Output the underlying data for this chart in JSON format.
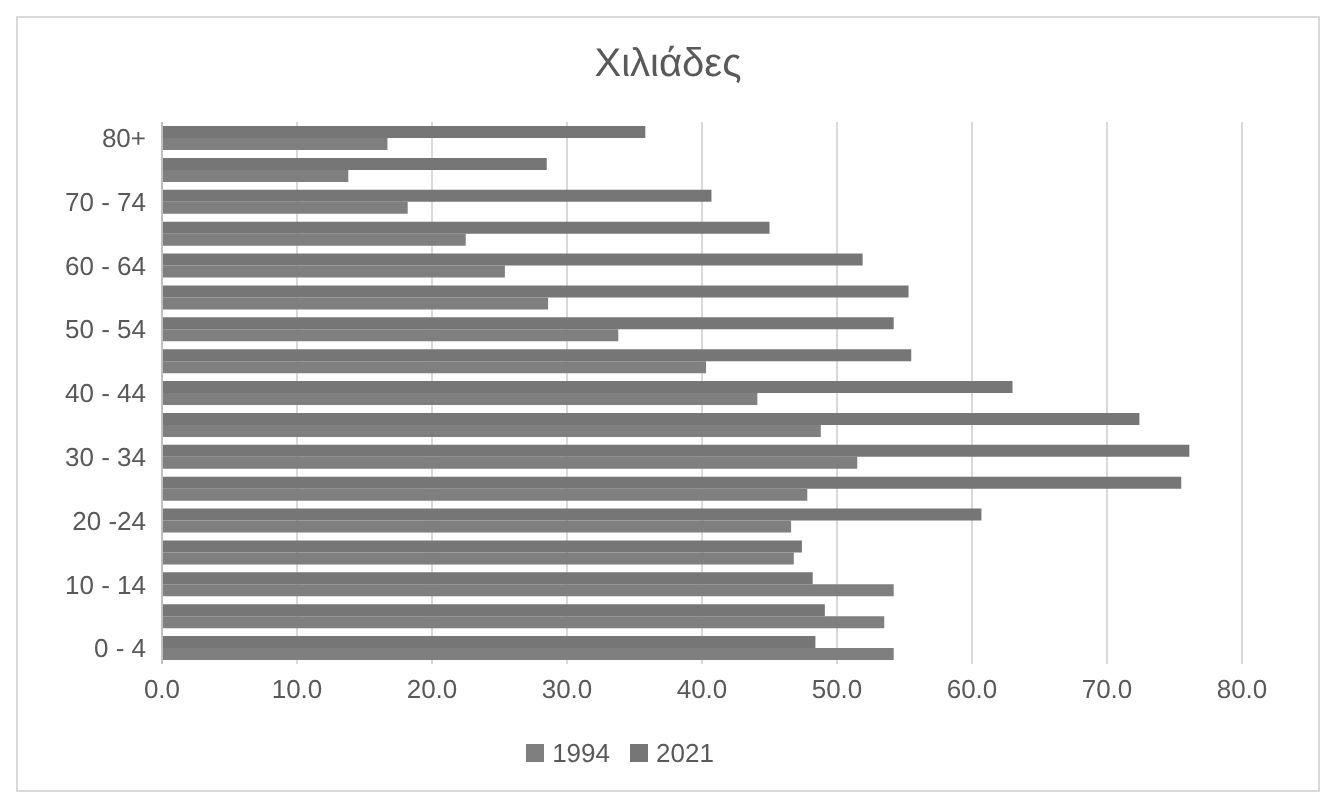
{
  "chart_data": {
    "type": "bar",
    "orientation": "horizontal",
    "title": "Χιλιάδες",
    "categories": [
      "80+",
      null,
      "70 - 74",
      null,
      "60 - 64",
      null,
      "50 - 54",
      null,
      "40 - 44",
      null,
      "30 - 34",
      null,
      "20 -24",
      null,
      "10 - 14",
      null,
      "0 - 4"
    ],
    "series": [
      {
        "name": "2021",
        "color": "#767676",
        "values": [
          35.8,
          28.5,
          40.7,
          45.0,
          51.9,
          55.3,
          54.2,
          55.5,
          63.0,
          72.4,
          76.1,
          75.5,
          60.7,
          47.4,
          48.2,
          49.1,
          48.4
        ]
      },
      {
        "name": "1994",
        "color": "#7f7f7f",
        "values": [
          16.7,
          13.8,
          18.2,
          22.5,
          25.4,
          28.6,
          33.8,
          40.3,
          44.1,
          48.8,
          51.5,
          47.8,
          46.6,
          46.8,
          54.2,
          53.5,
          54.2
        ]
      }
    ],
    "xlim": [
      0,
      80
    ],
    "xticks": [
      {
        "value": 0,
        "label": "0.0"
      },
      {
        "value": 10,
        "label": "10.0"
      },
      {
        "value": 20,
        "label": "20.0"
      },
      {
        "value": 30,
        "label": "30.0"
      },
      {
        "value": 40,
        "label": "40.0"
      },
      {
        "value": 50,
        "label": "50.0"
      },
      {
        "value": 60,
        "label": "60.0"
      },
      {
        "value": 70,
        "label": "70.0"
      },
      {
        "value": 80,
        "label": "80.0"
      }
    ],
    "grid": "x",
    "legend": "bottom"
  }
}
